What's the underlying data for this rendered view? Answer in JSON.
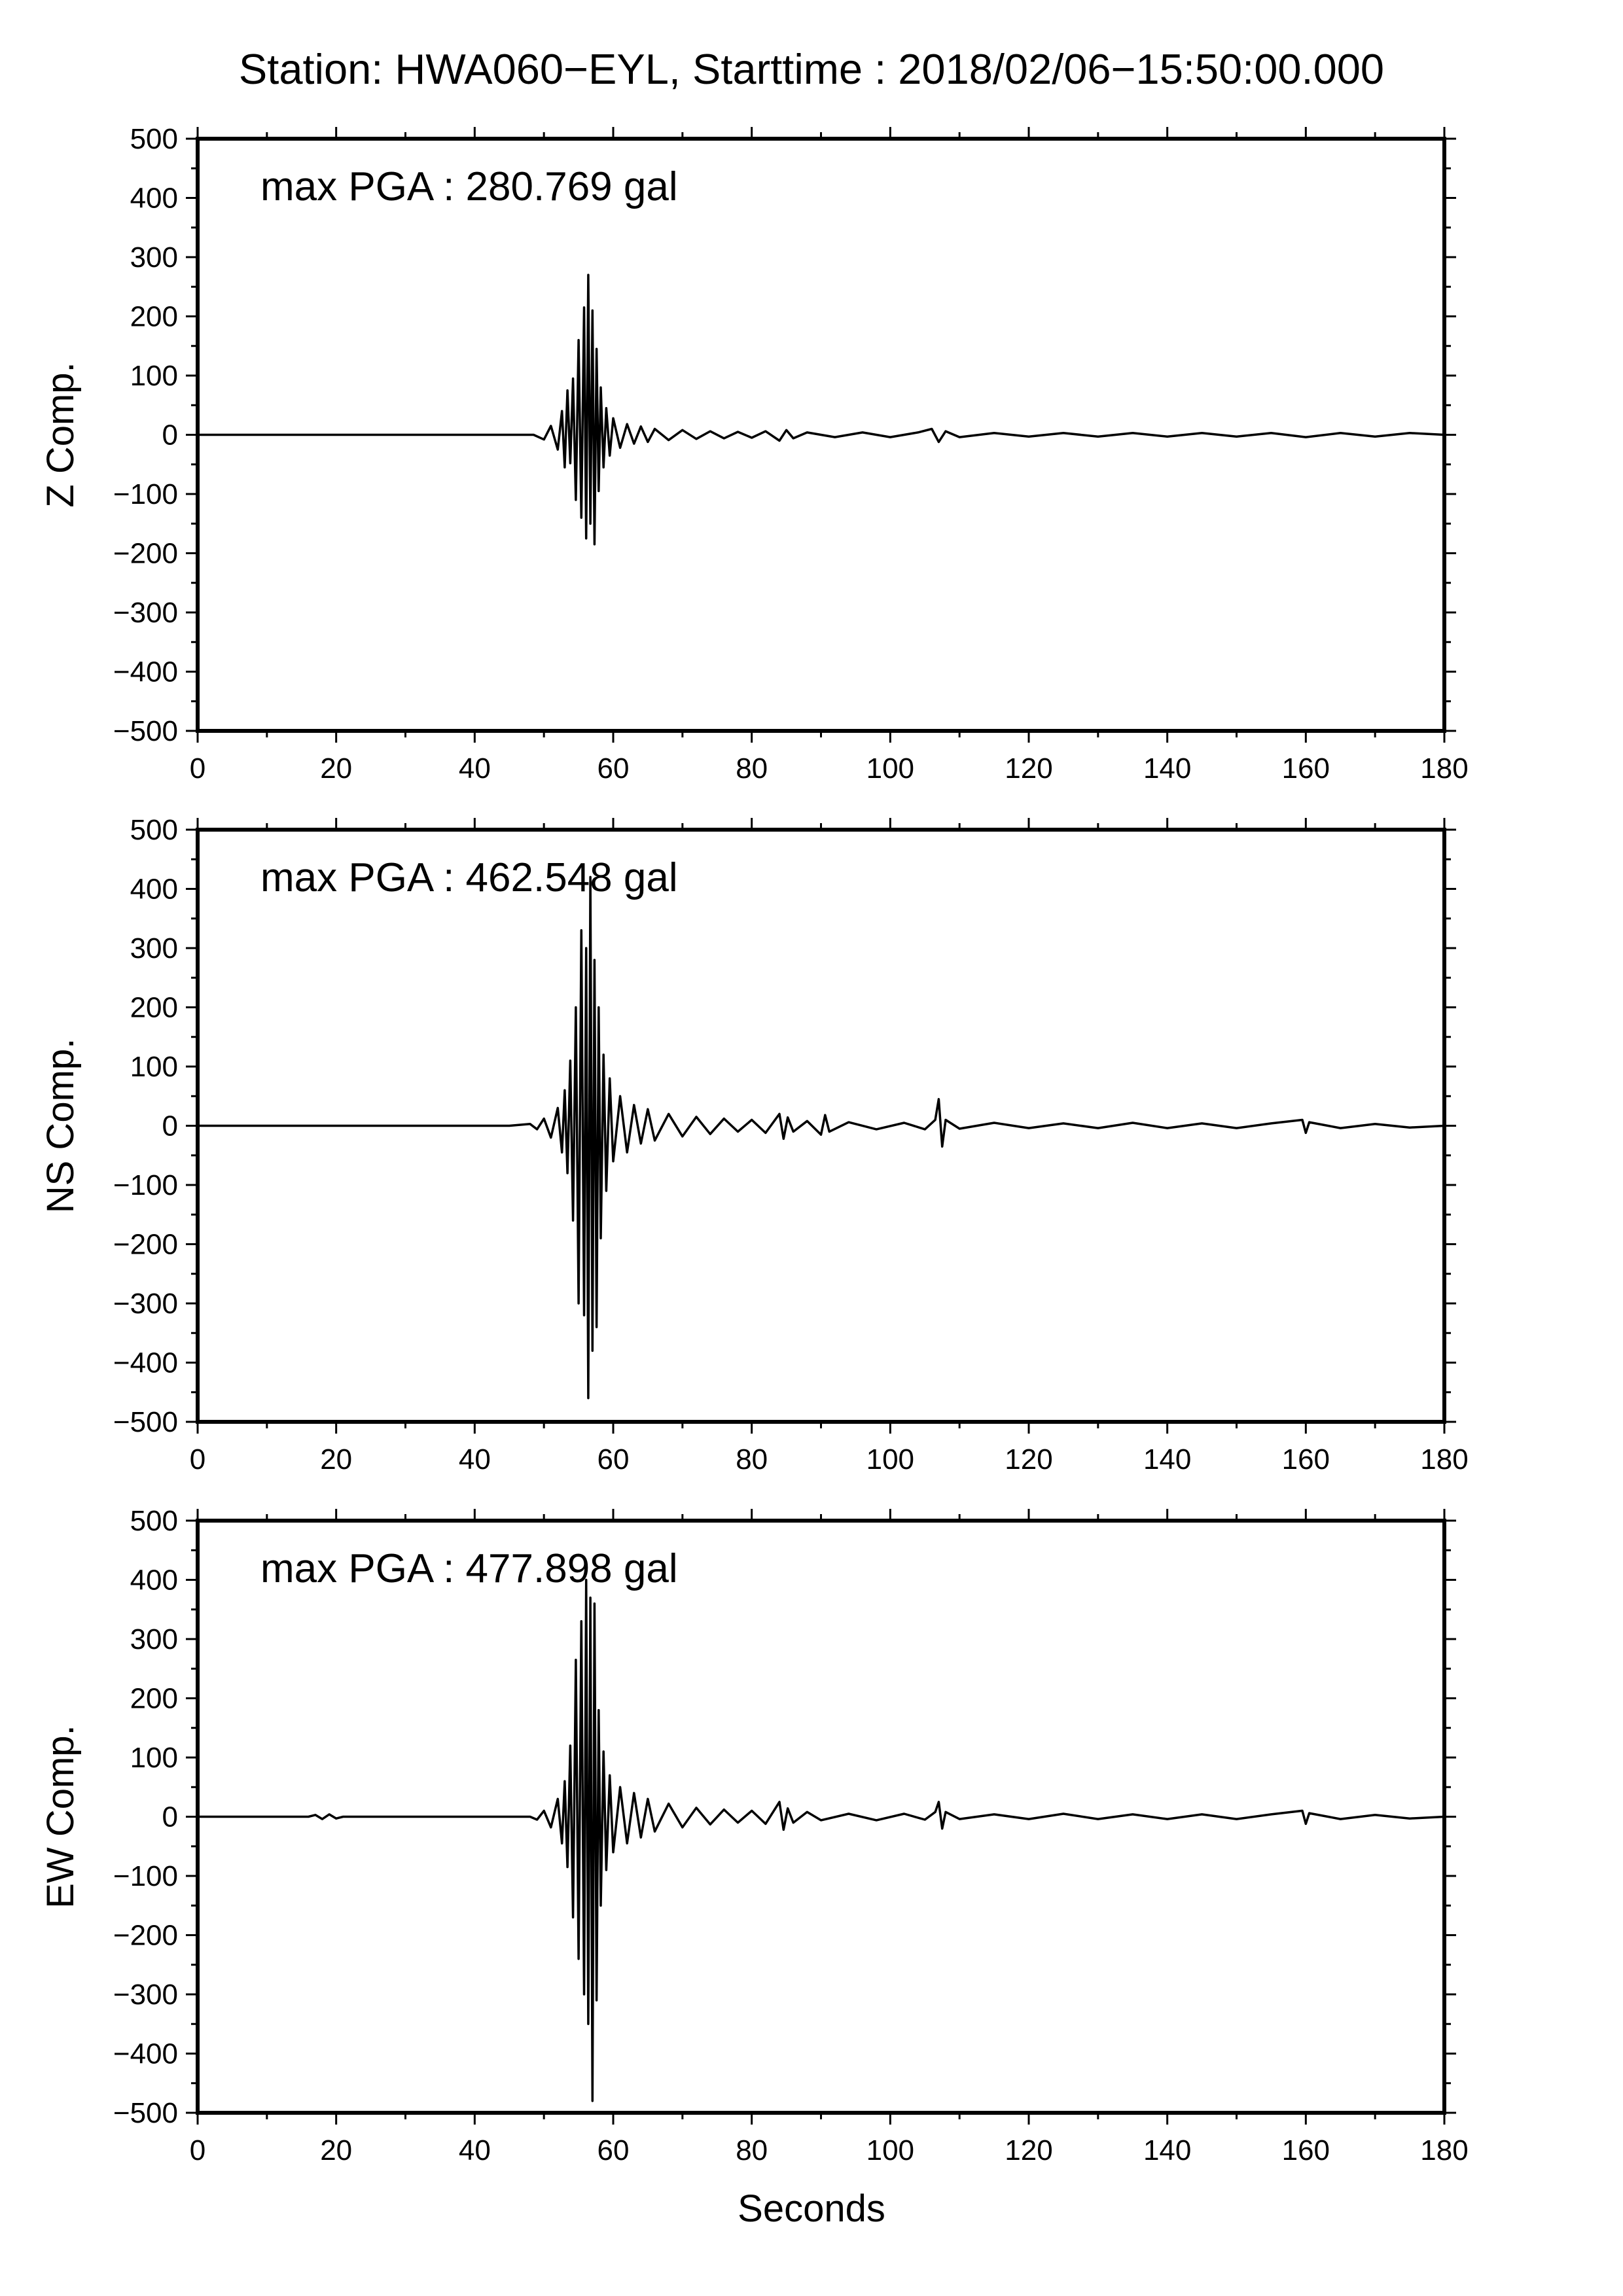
{
  "title": "Station: HWA060−EYL, Starttime : 2018/02/06−15:50:00.000",
  "xlabel": "Seconds",
  "chart_data": [
    {
      "type": "line",
      "component": "Z",
      "ylabel": "Z Comp.",
      "annotation": "max PGA : 280.769 gal",
      "max_pga": 280.769,
      "unit": "gal",
      "xlim": [
        0,
        180
      ],
      "ylim": [
        -500,
        500
      ],
      "xticks": [
        0,
        20,
        40,
        60,
        80,
        100,
        120,
        140,
        160,
        180
      ],
      "yticks": [
        500,
        400,
        300,
        200,
        100,
        0,
        -100,
        -200,
        -300,
        -400,
        -500
      ],
      "ytick_labels": [
        "500",
        "400",
        "300",
        "200",
        "100",
        "0",
        "−100",
        "−200",
        "−300",
        "−400",
        "−500"
      ],
      "grid": false,
      "series": [
        {
          "x": [
            0,
            48.5,
            50,
            51,
            52,
            52.6,
            53,
            53.4,
            53.8,
            54.2,
            54.6,
            55,
            55.4,
            55.8,
            56.1,
            56.4,
            56.7,
            57,
            57.3,
            57.6,
            57.9,
            58.2,
            58.6,
            59,
            59.5,
            60,
            61,
            62,
            63,
            64,
            65,
            66,
            68,
            70,
            72,
            74,
            76,
            78,
            80,
            82,
            84,
            85,
            86,
            88,
            92,
            96,
            100,
            104,
            106,
            107,
            108,
            110,
            115,
            120,
            125,
            130,
            135,
            140,
            145,
            150,
            155,
            160,
            165,
            170,
            175,
            180
          ],
          "y": [
            0,
            0,
            -8,
            15,
            -25,
            40,
            -55,
            75,
            -48,
            95,
            -110,
            160,
            -140,
            215,
            -175,
            270,
            -150,
            210,
            -185,
            145,
            -95,
            80,
            -55,
            45,
            -35,
            28,
            -22,
            18,
            -15,
            14,
            -12,
            10,
            -9,
            8,
            -7,
            6,
            -6,
            5,
            -5,
            6,
            -10,
            8,
            -6,
            4,
            -4,
            4,
            -4,
            4,
            10,
            -12,
            6,
            -4,
            3,
            -3,
            3,
            -3,
            3,
            -3,
            3,
            -3,
            3,
            -4,
            3,
            -3,
            3,
            0
          ]
        }
      ]
    },
    {
      "type": "line",
      "component": "NS",
      "ylabel": "NS Comp.",
      "annotation": "max PGA : 462.548 gal",
      "max_pga": 462.548,
      "unit": "gal",
      "xlim": [
        0,
        180
      ],
      "ylim": [
        -500,
        500
      ],
      "xticks": [
        0,
        20,
        40,
        60,
        80,
        100,
        120,
        140,
        160,
        180
      ],
      "yticks": [
        500,
        400,
        300,
        200,
        100,
        0,
        -100,
        -200,
        -300,
        -400,
        -500
      ],
      "ytick_labels": [
        "500",
        "400",
        "300",
        "200",
        "100",
        "0",
        "−100",
        "−200",
        "−300",
        "−400",
        "−500"
      ],
      "grid": false,
      "series": [
        {
          "x": [
            0,
            45,
            48,
            49,
            50,
            51,
            52,
            52.6,
            53,
            53.4,
            53.8,
            54.2,
            54.6,
            55,
            55.4,
            55.8,
            56.1,
            56.4,
            56.7,
            57,
            57.3,
            57.6,
            57.9,
            58.2,
            58.6,
            59,
            59.5,
            60,
            61,
            62,
            63,
            64,
            65,
            66,
            68,
            70,
            72,
            74,
            76,
            78,
            80,
            82,
            84,
            84.6,
            85.2,
            86,
            88,
            90,
            90.6,
            91.2,
            94,
            98,
            102,
            105,
            106.5,
            107,
            107.5,
            108,
            110,
            115,
            120,
            125,
            130,
            135,
            140,
            145,
            150,
            155,
            159.5,
            160,
            160.5,
            165,
            170,
            175,
            180
          ],
          "y": [
            0,
            0,
            3,
            -6,
            12,
            -20,
            30,
            -45,
            60,
            -80,
            110,
            -160,
            200,
            -300,
            330,
            -320,
            300,
            -460,
            420,
            -380,
            280,
            -340,
            200,
            -190,
            120,
            -110,
            80,
            -60,
            50,
            -45,
            35,
            -30,
            28,
            -25,
            20,
            -18,
            15,
            -14,
            12,
            -10,
            10,
            -12,
            20,
            -22,
            14,
            -10,
            8,
            -15,
            18,
            -10,
            6,
            -6,
            5,
            -6,
            10,
            45,
            -35,
            10,
            -5,
            5,
            -4,
            4,
            -4,
            5,
            -4,
            4,
            -4,
            4,
            10,
            -12,
            6,
            -4,
            3,
            -3,
            0
          ]
        }
      ]
    },
    {
      "type": "line",
      "component": "EW",
      "ylabel": "EW Comp.",
      "annotation": "max PGA : 477.898 gal",
      "max_pga": 477.898,
      "unit": "gal",
      "xlim": [
        0,
        180
      ],
      "ylim": [
        -500,
        500
      ],
      "xticks": [
        0,
        20,
        40,
        60,
        80,
        100,
        120,
        140,
        160,
        180
      ],
      "yticks": [
        500,
        400,
        300,
        200,
        100,
        0,
        -100,
        -200,
        -300,
        -400,
        -500
      ],
      "ytick_labels": [
        "500",
        "400",
        "300",
        "200",
        "100",
        "0",
        "−100",
        "−200",
        "−300",
        "−400",
        "−500"
      ],
      "grid": false,
      "series": [
        {
          "x": [
            0,
            16,
            17,
            18,
            19,
            20,
            21,
            48,
            49,
            50,
            51,
            52,
            52.6,
            53,
            53.4,
            53.8,
            54.2,
            54.6,
            55,
            55.4,
            55.8,
            56.1,
            56.4,
            56.7,
            57,
            57.3,
            57.6,
            57.9,
            58.2,
            58.6,
            59,
            59.5,
            60,
            61,
            62,
            63,
            64,
            65,
            66,
            68,
            70,
            72,
            74,
            76,
            78,
            80,
            82,
            84,
            84.6,
            85.2,
            86,
            88,
            90,
            94,
            98,
            102,
            105,
            106.5,
            107,
            107.5,
            108,
            110,
            115,
            120,
            125,
            130,
            135,
            140,
            145,
            150,
            155,
            159.5,
            160,
            160.5,
            165,
            170,
            175,
            180
          ],
          "y": [
            0,
            0,
            3,
            -4,
            4,
            -3,
            0,
            0,
            -5,
            10,
            -18,
            30,
            -45,
            60,
            -85,
            120,
            -170,
            265,
            -240,
            330,
            -300,
            400,
            -350,
            370,
            -480,
            360,
            -310,
            180,
            -150,
            110,
            -90,
            70,
            -60,
            50,
            -45,
            40,
            -35,
            30,
            -25,
            22,
            -18,
            15,
            -13,
            12,
            -10,
            10,
            -12,
            25,
            -22,
            14,
            -10,
            8,
            -6,
            5,
            -6,
            5,
            -5,
            8,
            25,
            -20,
            8,
            -4,
            4,
            -4,
            5,
            -4,
            4,
            -4,
            4,
            -4,
            4,
            10,
            -12,
            6,
            -4,
            3,
            -3,
            0
          ]
        }
      ]
    }
  ]
}
